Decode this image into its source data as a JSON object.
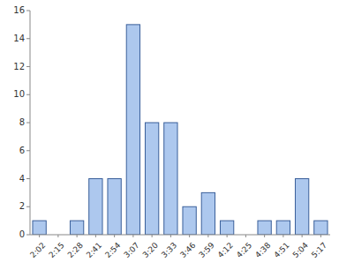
{
  "chart_data": {
    "type": "bar",
    "categories": [
      "2:02",
      "2:15",
      "2:28",
      "2:41",
      "2:54",
      "3:07",
      "3:20",
      "3:33",
      "3:46",
      "3:59",
      "4:12",
      "4:25",
      "4:38",
      "4:51",
      "5:04",
      "5:17"
    ],
    "values": [
      1,
      0,
      1,
      4,
      4,
      15,
      8,
      8,
      2,
      3,
      1,
      0,
      1,
      1,
      4,
      1
    ],
    "color": "#adc8ee",
    "ylim": [
      0,
      16
    ],
    "yticks": [
      0,
      2,
      4,
      6,
      8,
      10,
      12,
      14,
      16
    ],
    "grid": false
  }
}
